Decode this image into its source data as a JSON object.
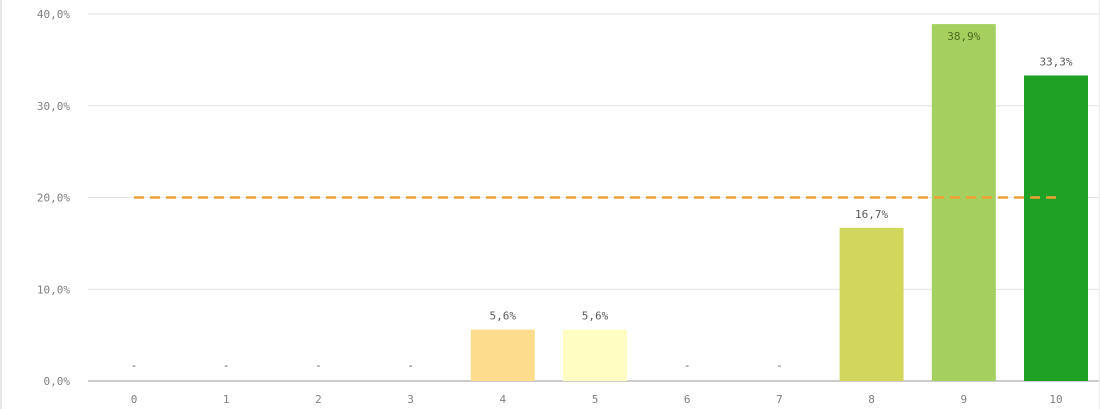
{
  "chart_data": {
    "type": "bar",
    "categories": [
      "0",
      "1",
      "2",
      "3",
      "4",
      "5",
      "6",
      "7",
      "8",
      "9",
      "10"
    ],
    "values": [
      0,
      0,
      0,
      0,
      5.6,
      5.6,
      0,
      0,
      16.7,
      38.9,
      33.3
    ],
    "data_labels": [
      "-",
      "-",
      "-",
      "-",
      "5,6%",
      "5,6%",
      "-",
      "-",
      "16,7%",
      "38,9%",
      "33,3%"
    ],
    "bar_colors": [
      "#ffffff",
      "#ffffff",
      "#ffffff",
      "#ffffff",
      "#fedc8d",
      "#fffdc1",
      "#ffffff",
      "#ffffff",
      "#d1d75d",
      "#a5cf5e",
      "#1fa125"
    ],
    "y_ticks": [
      0,
      10,
      20,
      30,
      40
    ],
    "y_tick_labels": [
      "0,0%",
      "10,0%",
      "20,0%",
      "30,0%",
      "40,0%"
    ],
    "ylim": [
      0,
      40
    ],
    "reference_line": {
      "value": 20,
      "color": "#f0a037",
      "style": "dashed"
    },
    "grid": true,
    "grid_color": "#e2e2e2",
    "title": "",
    "xlabel": "",
    "ylabel": ""
  }
}
